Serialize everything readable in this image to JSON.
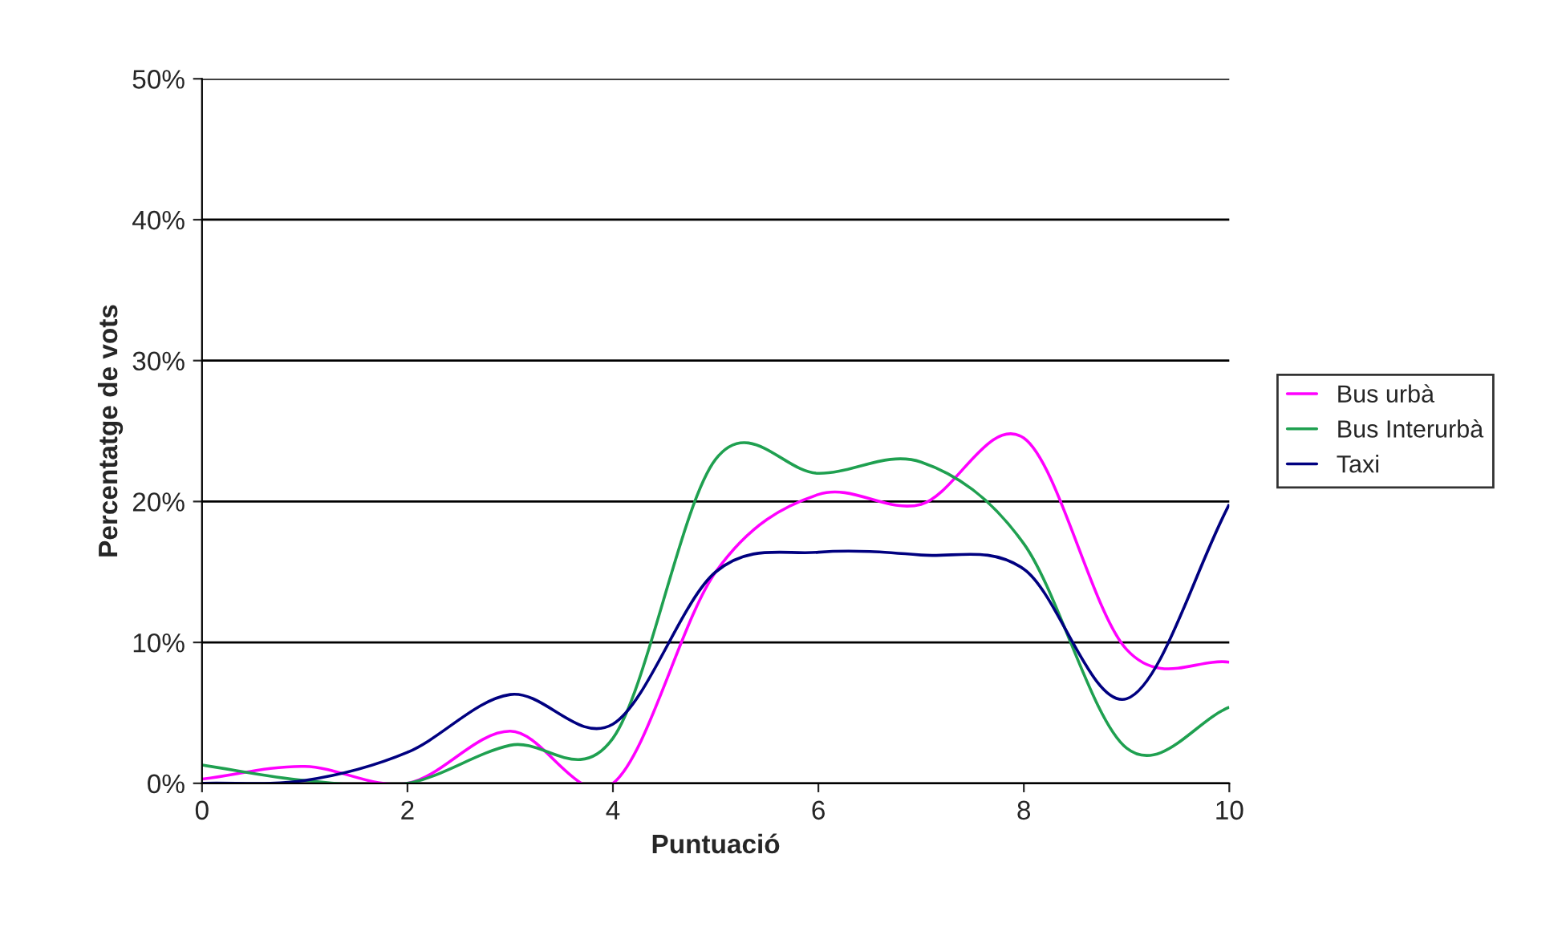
{
  "chart_data": {
    "type": "line",
    "xlabel": "Puntuació",
    "ylabel": "Percentatge de vots",
    "x": [
      0,
      1,
      2,
      3,
      4,
      5,
      6,
      7,
      8,
      9,
      10
    ],
    "series": [
      {
        "name": "Bus urbà",
        "color": "#ff00ff",
        "values": [
          0.3,
          1.2,
          0,
          3.7,
          0,
          15,
          20.5,
          19.8,
          24.5,
          9.5,
          8.6
        ]
      },
      {
        "name": "Bus Interurbà",
        "color": "#1fa050",
        "values": [
          1.3,
          0.2,
          0,
          2.7,
          3.2,
          23,
          22,
          22.8,
          17,
          2.5,
          5.4
        ]
      },
      {
        "name": "Taxi",
        "color": "#000080",
        "values": [
          0,
          0.2,
          2.2,
          6.3,
          4.2,
          15,
          16.4,
          16.2,
          15.2,
          6,
          19.8
        ]
      }
    ],
    "xlim": [
      0,
      10
    ],
    "xticks": [
      0,
      2,
      4,
      6,
      8,
      10
    ],
    "ylim": [
      0,
      50
    ],
    "yticks": [
      {
        "value": 0,
        "label": "0%"
      },
      {
        "value": 10,
        "label": "10%"
      },
      {
        "value": 20,
        "label": "20%"
      },
      {
        "value": 30,
        "label": "30%"
      },
      {
        "value": 40,
        "label": "40%"
      },
      {
        "value": 50,
        "label": "50%"
      }
    ],
    "grid": "y",
    "legend": "right",
    "marker": "none",
    "line_style": "solid"
  }
}
